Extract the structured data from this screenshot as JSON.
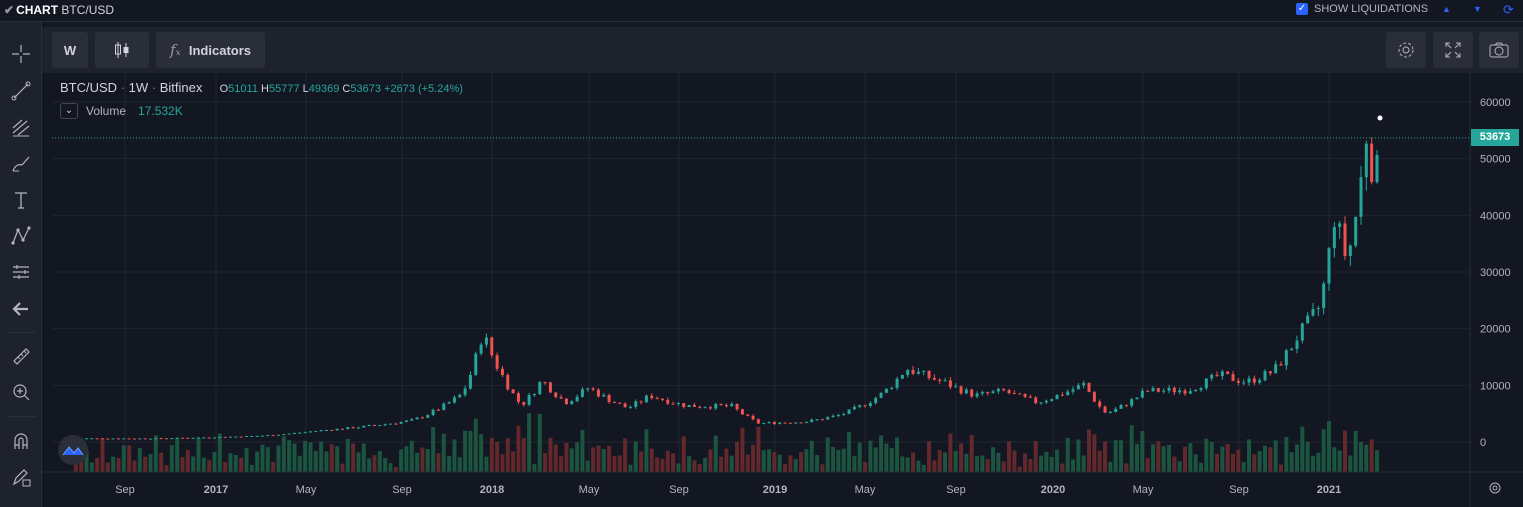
{
  "header": {
    "check_icon": "checkmark-icon",
    "title": "CHART",
    "pair": "BTC/USD",
    "show_liquidations_label": "SHOW LIQUIDATIONS",
    "show_liquidations_checked": true
  },
  "toolbar": {
    "interval_label": "W",
    "indicators_label": "Indicators"
  },
  "legend": {
    "symbol": "BTC/USD",
    "interval": "1W",
    "exchange": "Bitfinex",
    "open_label": "O",
    "open": "51011",
    "high_label": "H",
    "high": "55777",
    "low_label": "L",
    "low": "49369",
    "close_label": "C",
    "close": "53673",
    "change": "+2673 (+5.24%)",
    "volume_label": "Volume",
    "volume_value": "17.532K"
  },
  "price_tag": "53673",
  "colors": {
    "up": "#26a69a",
    "down": "#ef5350",
    "background": "#131722",
    "grid": "#1f2430",
    "accent": "#2962ff"
  },
  "chart_data": {
    "type": "candlestick",
    "title": "",
    "symbol": "BTC/USD",
    "interval": "1W",
    "x_ticks": [
      "Sep",
      "2017",
      "May",
      "Sep",
      "2018",
      "May",
      "Sep",
      "2019",
      "May",
      "Sep",
      "2020",
      "May",
      "Sep",
      "2021"
    ],
    "y_ticks": [
      0,
      10000,
      20000,
      30000,
      40000,
      50000,
      60000
    ],
    "ylim": [
      -5200,
      64000
    ],
    "last_price": 53673,
    "series": [
      {
        "name": "BTC/USD",
        "anchors": [
          [
            "2016-07-01",
            650
          ],
          [
            "2016-10-01",
            620
          ],
          [
            "2016-12-15",
            800
          ],
          [
            "2017-03-01",
            1100
          ],
          [
            "2017-05-15",
            2000
          ],
          [
            "2017-08-01",
            3000
          ],
          [
            "2017-09-15",
            3800
          ],
          [
            "2017-10-15",
            5500
          ],
          [
            "2017-11-20",
            8500
          ],
          [
            "2017-12-17",
            19500
          ],
          [
            "2018-01-15",
            11000
          ],
          [
            "2018-02-06",
            6500
          ],
          [
            "2018-03-05",
            11000
          ],
          [
            "2018-04-05",
            7000
          ],
          [
            "2018-05-05",
            9600
          ],
          [
            "2018-06-25",
            6000
          ],
          [
            "2018-07-25",
            8200
          ],
          [
            "2018-09-10",
            6400
          ],
          [
            "2018-11-10",
            6300
          ],
          [
            "2018-12-15",
            3300
          ],
          [
            "2019-02-15",
            3600
          ],
          [
            "2019-04-01",
            4800
          ],
          [
            "2019-05-25",
            8500
          ],
          [
            "2019-06-26",
            13000
          ],
          [
            "2019-08-15",
            10500
          ],
          [
            "2019-09-25",
            8200
          ],
          [
            "2019-11-01",
            9000
          ],
          [
            "2019-12-15",
            7000
          ],
          [
            "2020-02-15",
            10200
          ],
          [
            "2020-03-15",
            5000
          ],
          [
            "2020-05-05",
            9000
          ],
          [
            "2020-06-30",
            9200
          ],
          [
            "2020-08-10",
            11800
          ],
          [
            "2020-09-15",
            10600
          ],
          [
            "2020-10-20",
            12500
          ],
          [
            "2020-11-20",
            18500
          ],
          [
            "2020-12-20",
            24000
          ],
          [
            "2021-01-08",
            40000
          ],
          [
            "2021-01-25",
            32000
          ],
          [
            "2021-02-10",
            44000
          ],
          [
            "2021-02-21",
            57000
          ],
          [
            "2021-03-01",
            45000
          ],
          [
            "2021-03-14",
            53673
          ]
        ]
      },
      {
        "name": "Volume",
        "last": "17.532K"
      }
    ]
  }
}
